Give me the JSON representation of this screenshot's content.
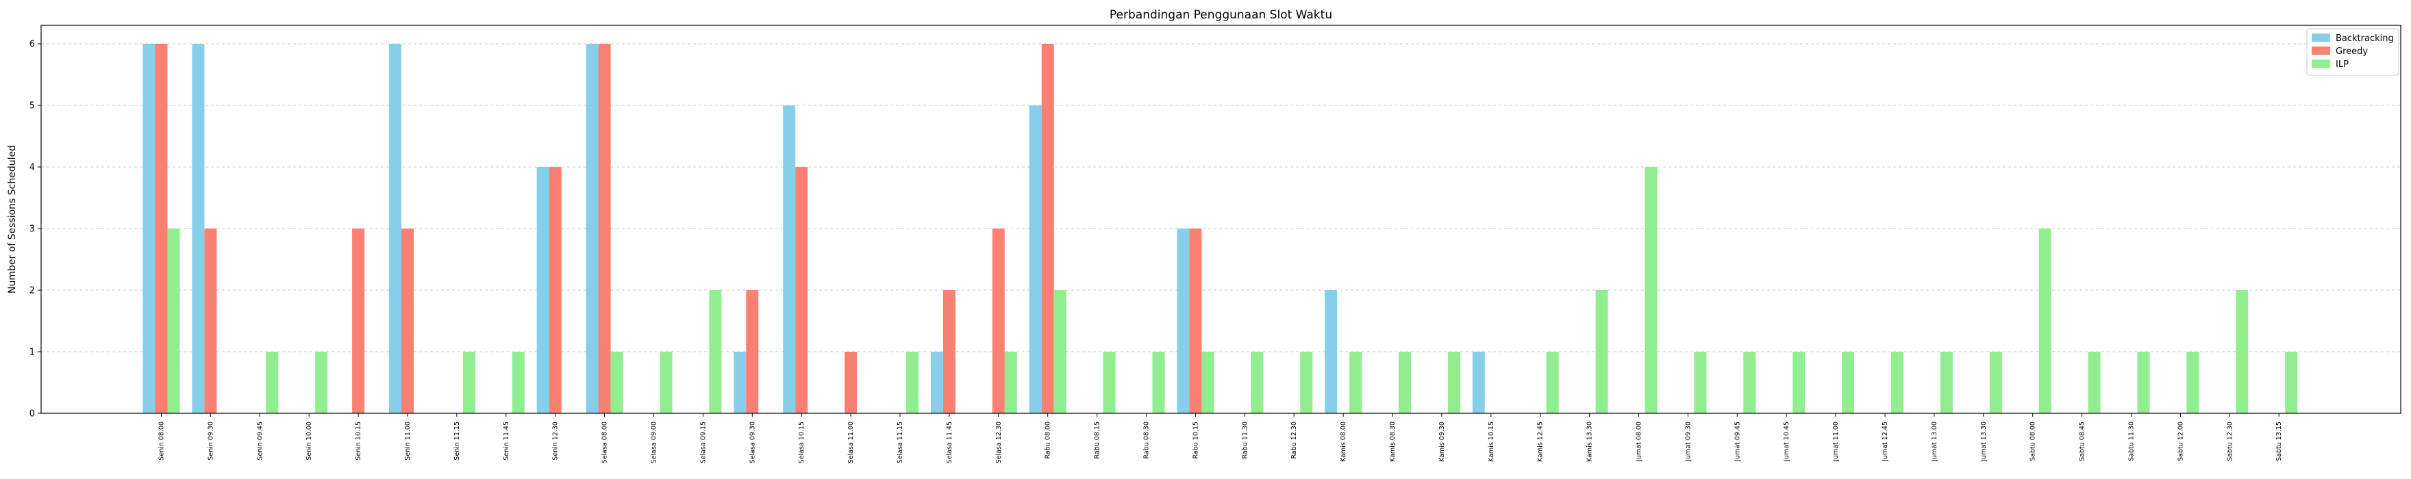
{
  "chart_data": {
    "type": "bar",
    "title": "Perbandingan Penggunaan Slot Waktu",
    "xlabel": "",
    "ylabel": "Number of Sessions Scheduled",
    "ylim": [
      0,
      6.3
    ],
    "yticks": [
      0,
      1,
      2,
      3,
      4,
      5,
      6
    ],
    "grid": "horizontal dashed",
    "legend_position": "top-right",
    "categories": [
      "Senin 08.00",
      "Senin 09.30",
      "Senin 09.45",
      "Senin 10.00",
      "Senin 10.15",
      "Senin 11.00",
      "Senin 11.15",
      "Senin 11.45",
      "Senin 12.30",
      "Selasa 08.00",
      "Selasa 09.00",
      "Selasa 09.15",
      "Selasa 09.30",
      "Selasa 10.15",
      "Selasa 11.00",
      "Selasa 11.15",
      "Selasa 11.45",
      "Selasa 12.30",
      "Rabu 08.00",
      "Rabu 08.15",
      "Rabu 08.30",
      "Rabu 10.15",
      "Rabu 11.30",
      "Rabu 12.30",
      "Kamis 08.00",
      "Kamis 08.30",
      "Kamis 09.30",
      "Kamis 10.15",
      "Kamis 12.45",
      "Kamis 13.30",
      "Jumat 08.00",
      "Jumat 09.30",
      "Jumat 09.45",
      "Jumat 10.45",
      "Jumat 11.00",
      "Jumat 12.45",
      "Jumat 13.00",
      "Jumat 13.30",
      "Sabtu 08.00",
      "Sabtu 08.45",
      "Sabtu 11.30",
      "Sabtu 12.00",
      "Sabtu 12.30",
      "Sabtu 13.15"
    ],
    "series": [
      {
        "name": "Backtracking",
        "color": "#87CEEB",
        "values": [
          6,
          6,
          0,
          0,
          0,
          6,
          0,
          0,
          4,
          6,
          0,
          0,
          1,
          5,
          0,
          0,
          1,
          0,
          5,
          0,
          0,
          3,
          0,
          0,
          2,
          0,
          0,
          1,
          0,
          0,
          0,
          0,
          0,
          0,
          0,
          0,
          0,
          0,
          0,
          0,
          0,
          0,
          0,
          0
        ]
      },
      {
        "name": "Greedy",
        "color": "#FA8072",
        "values": [
          6,
          3,
          0,
          0,
          3,
          3,
          0,
          0,
          4,
          6,
          0,
          0,
          2,
          4,
          1,
          0,
          2,
          3,
          6,
          0,
          0,
          3,
          0,
          0,
          0,
          0,
          0,
          0,
          0,
          0,
          0,
          0,
          0,
          0,
          0,
          0,
          0,
          0,
          0,
          0,
          0,
          0,
          0,
          0
        ]
      },
      {
        "name": "ILP",
        "color": "#90EE90",
        "values": [
          3,
          0,
          1,
          1,
          0,
          0,
          1,
          1,
          0,
          1,
          1,
          2,
          0,
          0,
          0,
          1,
          0,
          1,
          2,
          1,
          1,
          1,
          1,
          1,
          1,
          1,
          1,
          0,
          1,
          2,
          4,
          1,
          1,
          1,
          1,
          1,
          1,
          1,
          3,
          1,
          1,
          1,
          2,
          1
        ]
      }
    ]
  }
}
